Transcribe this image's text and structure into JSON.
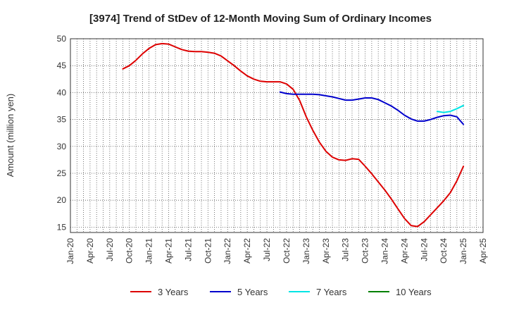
{
  "chart_data": {
    "type": "line",
    "title": "[3974]  Trend of StDev of 12-Month Moving Sum of Ordinary Incomes",
    "xlabel": "",
    "ylabel": "Amount (million yen)",
    "ylim": [
      14,
      50
    ],
    "yticks": [
      15,
      20,
      25,
      30,
      35,
      40,
      45,
      50
    ],
    "xticks": [
      "Jan-20",
      "Apr-20",
      "Jul-20",
      "Oct-20",
      "Jan-21",
      "Apr-21",
      "Jul-21",
      "Oct-21",
      "Jan-22",
      "Apr-22",
      "Jul-22",
      "Oct-22",
      "Jan-23",
      "Apr-23",
      "Jul-23",
      "Oct-23",
      "Jan-24",
      "Apr-24",
      "Jul-24",
      "Oct-24",
      "Jan-25",
      "Apr-25"
    ],
    "grid": true,
    "legend_position": "bottom",
    "series": [
      {
        "name": "3 Years",
        "color": "#dd0000",
        "x": [
          "2020-09",
          "2020-10",
          "2020-11",
          "2020-12",
          "2021-01",
          "2021-02",
          "2021-03",
          "2021-04",
          "2021-05",
          "2021-06",
          "2021-07",
          "2021-08",
          "2021-09",
          "2021-10",
          "2021-11",
          "2021-12",
          "2022-01",
          "2022-02",
          "2022-03",
          "2022-04",
          "2022-05",
          "2022-06",
          "2022-07",
          "2022-08",
          "2022-09",
          "2022-10",
          "2022-11",
          "2022-12",
          "2023-01",
          "2023-02",
          "2023-03",
          "2023-04",
          "2023-05",
          "2023-06",
          "2023-07",
          "2023-08",
          "2023-09",
          "2023-10",
          "2023-11",
          "2023-12",
          "2024-01",
          "2024-02",
          "2024-03",
          "2024-04",
          "2024-05",
          "2024-06",
          "2024-07",
          "2024-08",
          "2024-09",
          "2024-10",
          "2024-11",
          "2024-12",
          "2025-01"
        ],
        "values": [
          44.4,
          45.0,
          46.0,
          47.2,
          48.2,
          48.9,
          49.1,
          49.0,
          48.5,
          48.0,
          47.7,
          47.6,
          47.6,
          47.5,
          47.3,
          46.8,
          45.9,
          45.0,
          44.0,
          43.1,
          42.5,
          42.1,
          42.0,
          42.0,
          42.0,
          41.6,
          40.6,
          38.5,
          35.5,
          33.0,
          30.8,
          29.1,
          28.0,
          27.5,
          27.4,
          27.7,
          27.6,
          26.3,
          24.9,
          23.4,
          21.9,
          20.2,
          18.4,
          16.6,
          15.3,
          15.1,
          16.0,
          17.3,
          18.6,
          19.9,
          21.4,
          23.6,
          26.3
        ]
      },
      {
        "name": "5 Years",
        "color": "#0000cc",
        "x": [
          "2022-09",
          "2022-10",
          "2022-11",
          "2022-12",
          "2023-01",
          "2023-02",
          "2023-03",
          "2023-04",
          "2023-05",
          "2023-06",
          "2023-07",
          "2023-08",
          "2023-09",
          "2023-10",
          "2023-11",
          "2023-12",
          "2024-01",
          "2024-02",
          "2024-03",
          "2024-04",
          "2024-05",
          "2024-06",
          "2024-07",
          "2024-08",
          "2024-09",
          "2024-10",
          "2024-11",
          "2024-12",
          "2025-01"
        ],
        "values": [
          40.1,
          39.8,
          39.7,
          39.7,
          39.7,
          39.7,
          39.6,
          39.4,
          39.2,
          38.9,
          38.6,
          38.6,
          38.8,
          39.0,
          39.0,
          38.7,
          38.1,
          37.5,
          36.7,
          35.8,
          35.1,
          34.7,
          34.7,
          35.0,
          35.4,
          35.7,
          35.8,
          35.5,
          34.1
        ]
      },
      {
        "name": "7 Years",
        "color": "#00e5e5",
        "x": [
          "2024-09",
          "2024-10",
          "2024-11",
          "2024-12",
          "2025-01"
        ],
        "values": [
          36.5,
          36.3,
          36.5,
          37.0,
          37.6
        ]
      },
      {
        "name": "10 Years",
        "color": "#008000",
        "x": [],
        "values": []
      }
    ]
  }
}
